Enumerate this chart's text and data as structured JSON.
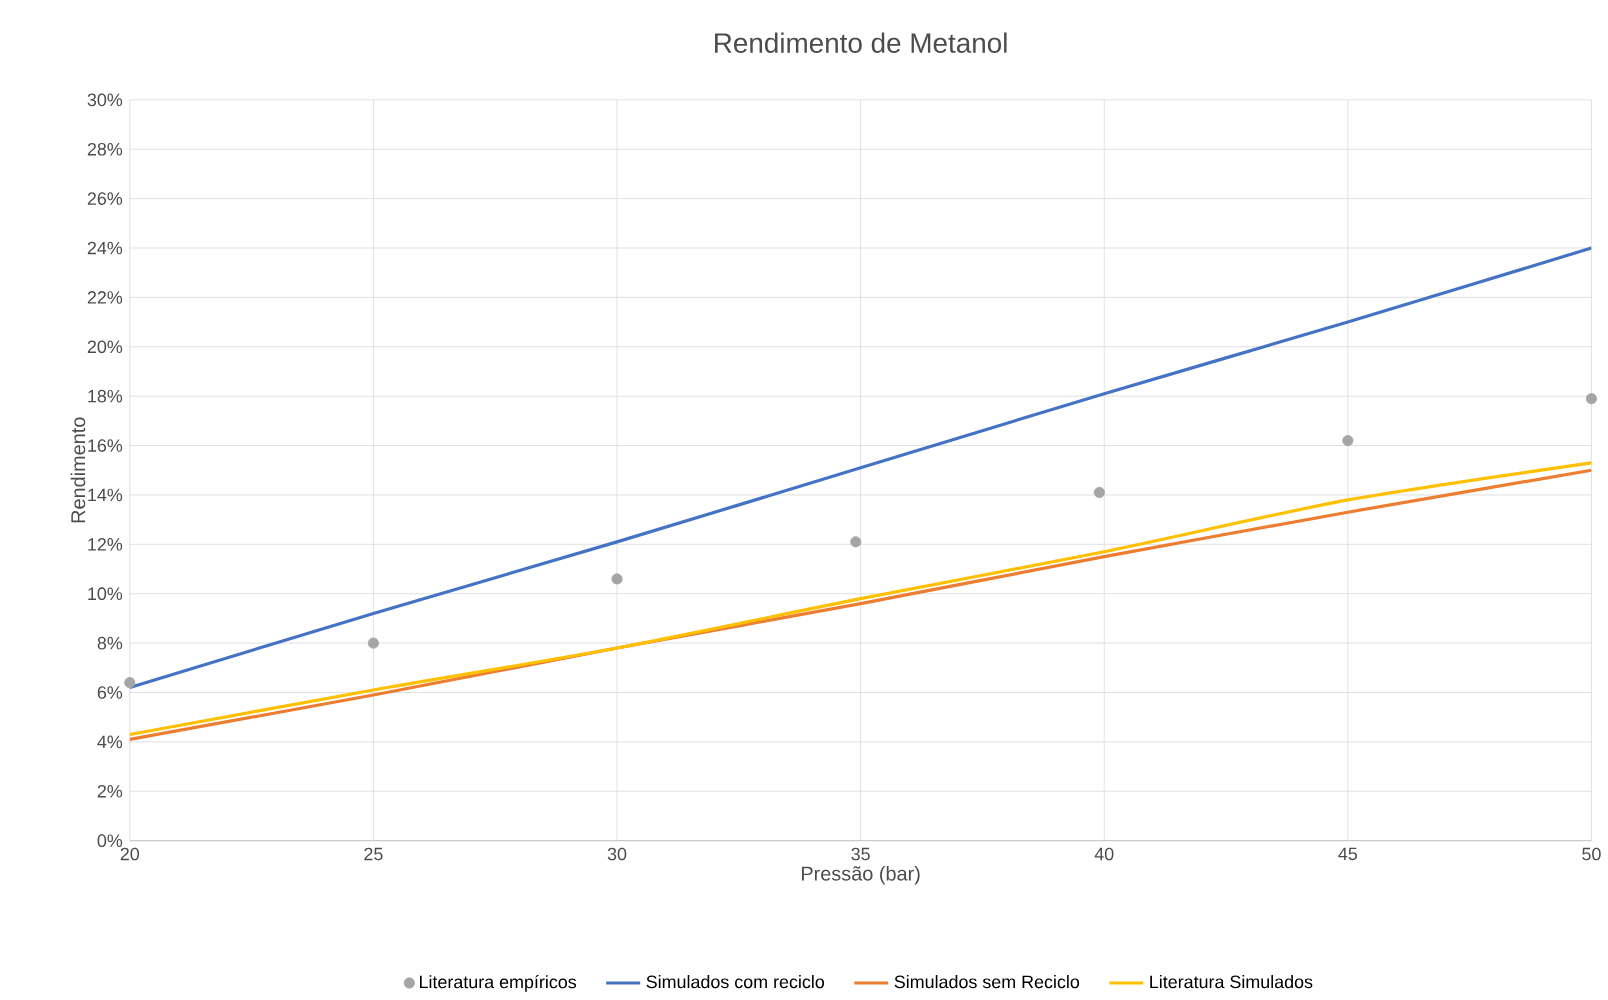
{
  "chart_data": {
    "type": "line",
    "title": "Rendimento de Metanol",
    "xlabel": "Pressão (bar)",
    "ylabel": "Rendimento",
    "xlim": [
      20,
      50
    ],
    "xticks": [
      20,
      25,
      30,
      35,
      40,
      45,
      50
    ],
    "ylim": [
      0,
      30
    ],
    "yticks": [
      {
        "value": 0,
        "label": "0%"
      },
      {
        "value": 2,
        "label": "2%"
      },
      {
        "value": 4,
        "label": "4%"
      },
      {
        "value": 6,
        "label": "6%"
      },
      {
        "value": 8,
        "label": "8%"
      },
      {
        "value": 10,
        "label": "10%"
      },
      {
        "value": 12,
        "label": "12%"
      },
      {
        "value": 14,
        "label": "14%"
      },
      {
        "value": 16,
        "label": "16%"
      },
      {
        "value": 18,
        "label": "18%"
      },
      {
        "value": 20,
        "label": "20%"
      },
      {
        "value": 22,
        "label": "22%"
      },
      {
        "value": 24,
        "label": "24%"
      },
      {
        "value": 26,
        "label": "26%"
      },
      {
        "value": 28,
        "label": "28%"
      },
      {
        "value": 30,
        "label": "30%"
      }
    ],
    "grid": true,
    "legend": "bottom",
    "series": [
      {
        "name": "Literatura empíricos",
        "type": "scatter",
        "marker": "circle",
        "color": "#a5a5a5",
        "x": [
          20,
          25,
          30,
          34.9,
          39.9,
          45,
          50
        ],
        "values": [
          6.4,
          8.0,
          10.6,
          12.1,
          14.1,
          16.2,
          17.9
        ]
      },
      {
        "name": "Simulados com reciclo",
        "type": "line",
        "color": "#4472c4",
        "x": [
          20,
          25,
          30,
          35,
          40,
          45,
          50
        ],
        "values": [
          6.2,
          9.2,
          12.1,
          15.1,
          18.1,
          21.0,
          24.0
        ]
      },
      {
        "name": "Simulados sem Reciclo",
        "type": "line",
        "color": "#ed7d31",
        "x": [
          20,
          25,
          30,
          35,
          40,
          45,
          50
        ],
        "values": [
          4.1,
          5.9,
          7.8,
          9.6,
          11.5,
          13.3,
          15.0
        ]
      },
      {
        "name": "Literatura Simulados",
        "type": "line",
        "color": "#ffc000",
        "x": [
          20,
          25,
          30,
          35,
          40,
          45,
          50
        ],
        "values": [
          4.3,
          6.1,
          7.8,
          9.8,
          11.7,
          13.8,
          15.3
        ]
      }
    ]
  }
}
